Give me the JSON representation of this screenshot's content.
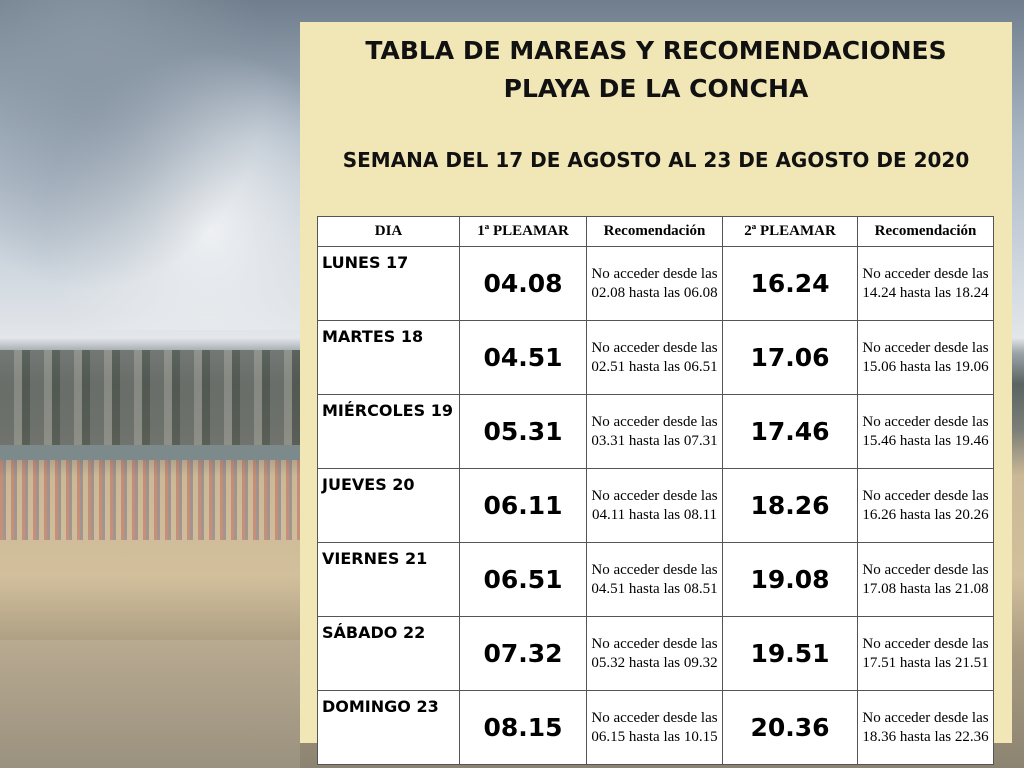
{
  "header": {
    "title": [
      "TABLA DE MAREAS Y RECOMENDACIONES",
      "PLAYA DE LA CONCHA"
    ],
    "subtitle": "SEMANA DEL 17 DE AGOSTO AL 23 DE AGOSTO DE 2020"
  },
  "table": {
    "headers": [
      "DIA",
      "1ª PLEAMAR",
      "Recomendación",
      "2ª PLEAMAR",
      "Recomendación"
    ],
    "rows": [
      [
        "LUNES 17",
        "04.08",
        "No acceder desde las 02.08 hasta las 06.08",
        "16.24",
        "No acceder desde las 14.24 hasta las 18.24"
      ],
      [
        "MARTES 18",
        "04.51",
        "No acceder desde las 02.51 hasta las 06.51",
        "17.06",
        "No acceder desde las 15.06 hasta las 19.06"
      ],
      [
        "MIÉRCOLES 19",
        "05.31",
        "No acceder desde las 03.31 hasta las 07.31",
        "17.46",
        "No acceder desde las 15.46 hasta las 19.46"
      ],
      [
        "JUEVES 20",
        "06.11",
        "No acceder desde las 04.11 hasta las 08.11",
        "18.26",
        "No acceder desde las 16.26 hasta las 20.26"
      ],
      [
        "VIERNES 21",
        "06.51",
        "No acceder desde las 04.51 hasta las 08.51",
        "19.08",
        "No acceder desde las 17.08 hasta las 21.08"
      ],
      [
        "SÁBADO 22",
        "07.32",
        "No acceder desde las 05.32 hasta las 09.32",
        "19.51",
        "No acceder desde las 17.51 hasta las 21.51"
      ],
      [
        "DOMINGO 23",
        "08.15",
        "No acceder desde las 06.15 hasta las 10.15",
        "20.36",
        "No acceder desde las 18.36 hasta las 22.36"
      ]
    ]
  }
}
